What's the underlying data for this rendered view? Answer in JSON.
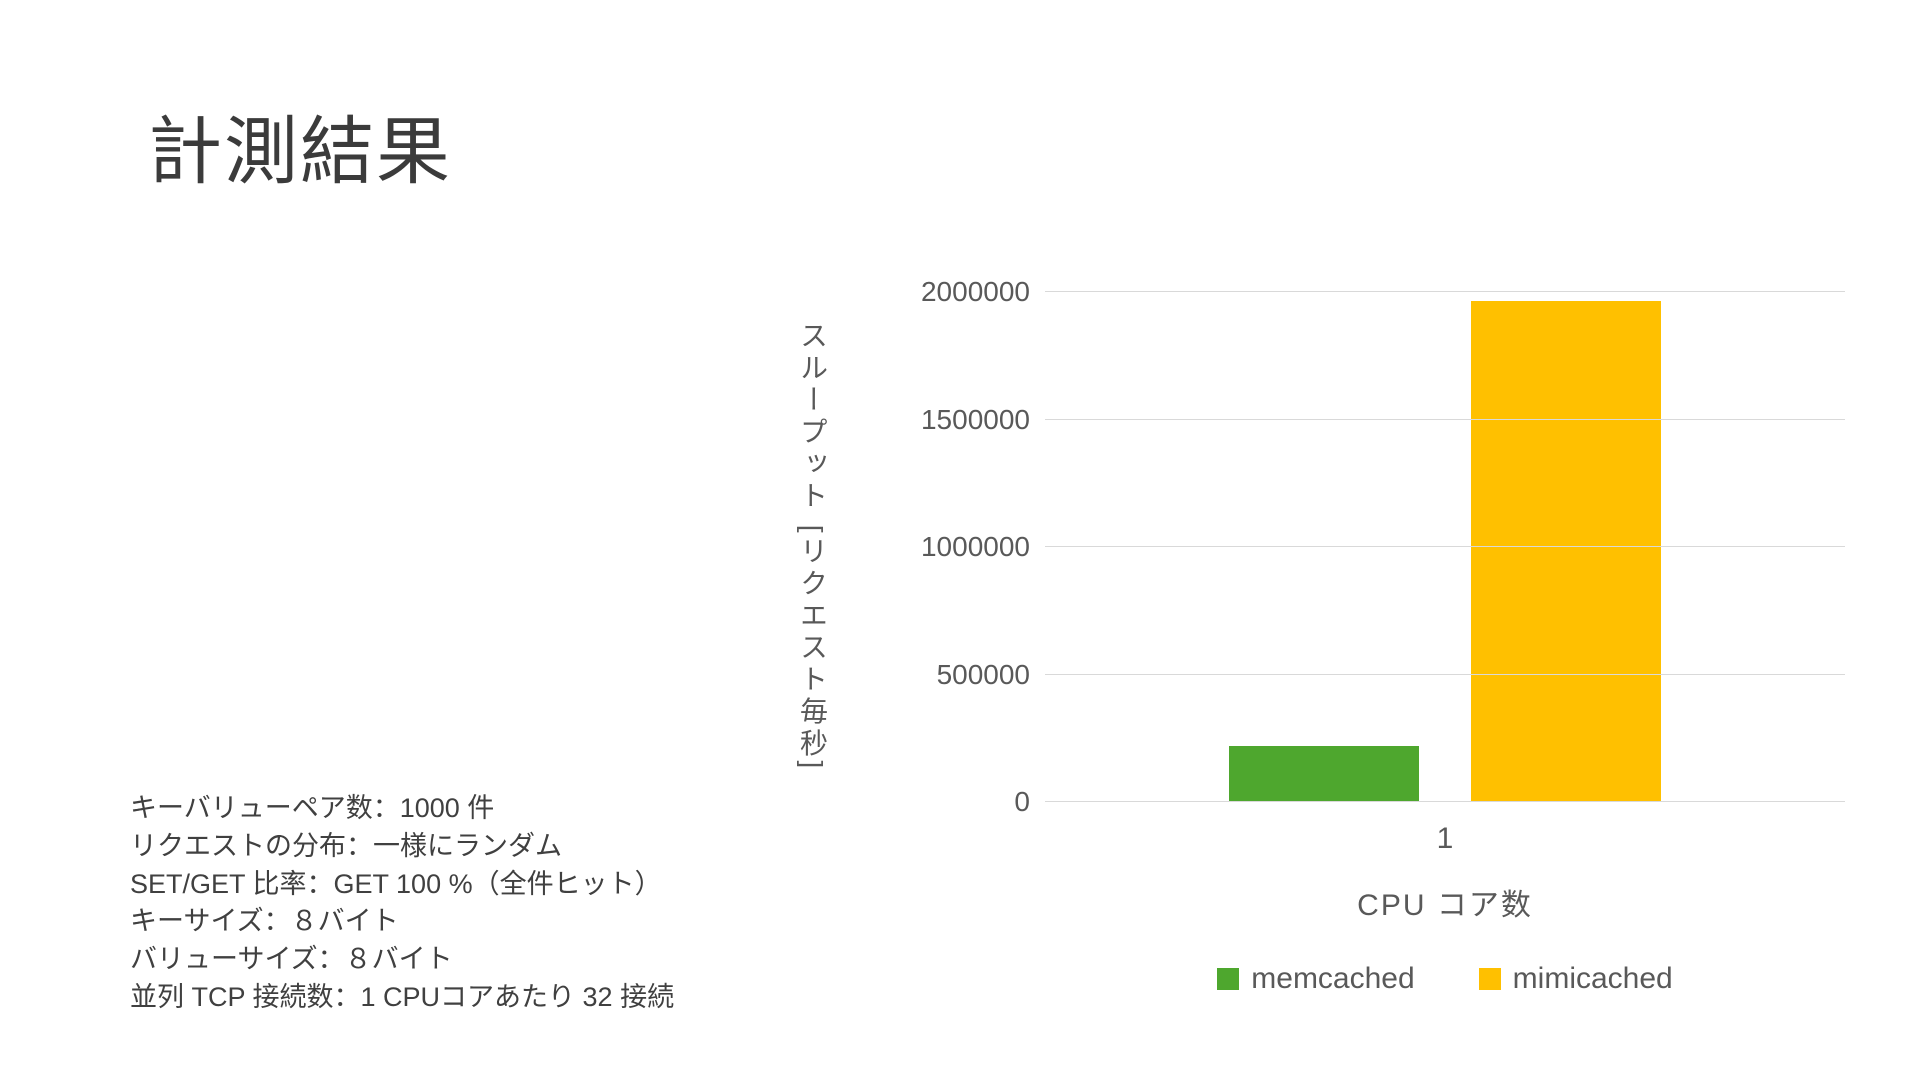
{
  "slide": {
    "title": "計測結果",
    "notes": [
      "キーバリューペア数：1000 件",
      "リクエストの分布：一様にランダム",
      "SET/GET 比率：GET 100 %（全件ヒット）",
      "キーサイズ：８バイト",
      "バリューサイズ：８バイト",
      "並列 TCP 接続数：1 CPUコアあたり 32 接続"
    ]
  },
  "chart_data": {
    "type": "bar",
    "title": "",
    "categories": [
      "1"
    ],
    "series": [
      {
        "name": "memcached",
        "color": "#4EA72E",
        "values": [
          220000
        ]
      },
      {
        "name": "mimicached",
        "color": "#FFC000",
        "values": [
          1965000
        ]
      }
    ],
    "xlabel": "CPU コア数",
    "ylabel": "スループット [リクエスト毎秒]",
    "ylim": [
      0,
      2000000
    ],
    "yticks": [
      0,
      500000,
      1000000,
      1500000,
      2000000
    ],
    "grid": true,
    "gridline_color": "#d9d9d9",
    "legend_position": "bottom"
  }
}
